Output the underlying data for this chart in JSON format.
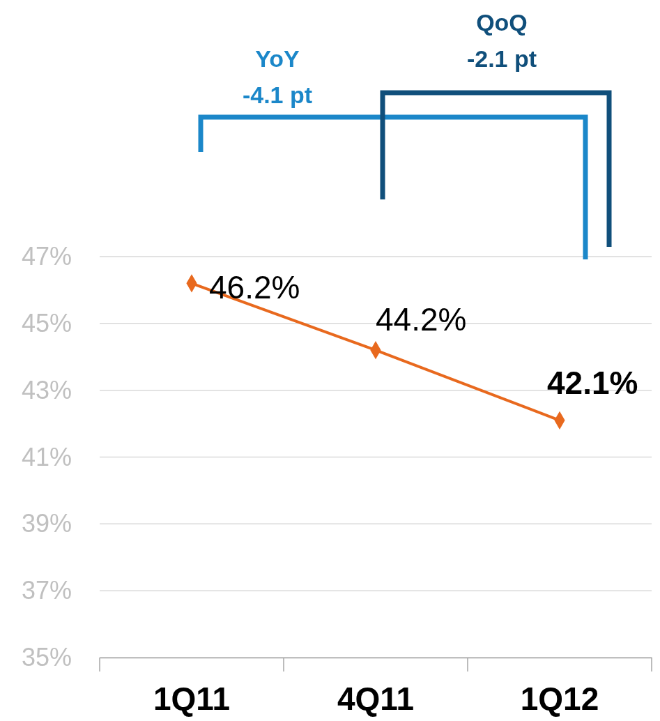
{
  "chart_data": {
    "type": "line",
    "categories": [
      "1Q11",
      "4Q11",
      "1Q12"
    ],
    "series": [
      {
        "color": "#e8691e",
        "values": [
          46.2,
          44.2,
          42.1
        ],
        "value_labels": [
          "46.2%",
          "44.2%",
          "42.1%"
        ]
      }
    ],
    "ylim": [
      35,
      47
    ],
    "yticks": [
      {
        "value": 35,
        "label": "35%"
      },
      {
        "value": 37,
        "label": "37%"
      },
      {
        "value": 39,
        "label": "39%"
      },
      {
        "value": 41,
        "label": "41%"
      },
      {
        "value": 43,
        "label": "43%"
      },
      {
        "value": 45,
        "label": "45%"
      },
      {
        "value": 47,
        "label": "47%"
      }
    ],
    "grid": "y",
    "marker": "diamond",
    "line_style": "solid",
    "annotations": [
      "YoY",
      "-4.1 pt",
      "QoQ",
      "-2.1 pt"
    ]
  }
}
